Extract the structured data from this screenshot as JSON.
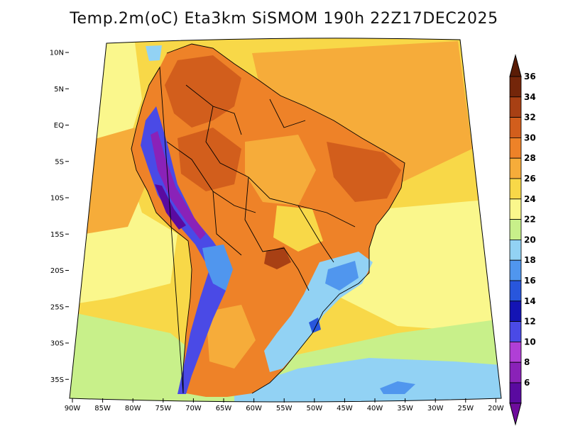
{
  "title": "Temp.2m(oC) Eta3km SiSMOM 190h 22Z17DEC2025",
  "map": {
    "variable": "2 m air temperature",
    "units": "oC",
    "model": "Eta3km SiSMOM",
    "lon_range": [
      -91,
      -19
    ],
    "lat_range": [
      -38,
      11
    ],
    "lon_ticks": [
      {
        "value": -90,
        "label": "90W"
      },
      {
        "value": -85,
        "label": "85W"
      },
      {
        "value": -80,
        "label": "80W"
      },
      {
        "value": -75,
        "label": "75W"
      },
      {
        "value": -70,
        "label": "70W"
      },
      {
        "value": -65,
        "label": "65W"
      },
      {
        "value": -60,
        "label": "60W"
      },
      {
        "value": -55,
        "label": "55W"
      },
      {
        "value": -50,
        "label": "50W"
      },
      {
        "value": -45,
        "label": "45W"
      },
      {
        "value": -40,
        "label": "40W"
      },
      {
        "value": -35,
        "label": "35W"
      },
      {
        "value": -30,
        "label": "30W"
      },
      {
        "value": -25,
        "label": "25W"
      },
      {
        "value": -20,
        "label": "20W"
      }
    ],
    "lat_ticks": [
      {
        "value": 10,
        "label": "10N"
      },
      {
        "value": 5,
        "label": "5N"
      },
      {
        "value": 0,
        "label": "EQ"
      },
      {
        "value": -5,
        "label": "5S"
      },
      {
        "value": -10,
        "label": "10S"
      },
      {
        "value": -15,
        "label": "15S"
      },
      {
        "value": -20,
        "label": "20S"
      },
      {
        "value": -25,
        "label": "25S"
      },
      {
        "value": -30,
        "label": "30S"
      },
      {
        "value": -35,
        "label": "35S"
      }
    ]
  },
  "colorbar": {
    "levels": [
      {
        "label": "6",
        "color": "#5a0aa0"
      },
      {
        "label": "8",
        "color": "#8a22b8"
      },
      {
        "label": "10",
        "color": "#b03fd6"
      },
      {
        "label": "12",
        "color": "#4a4ae6"
      },
      {
        "label": "14",
        "color": "#1414b4"
      },
      {
        "label": "16",
        "color": "#2856dc"
      },
      {
        "label": "18",
        "color": "#5096ee"
      },
      {
        "label": "20",
        "color": "#92d2f4"
      },
      {
        "label": "22",
        "color": "#c8f08a"
      },
      {
        "label": "24",
        "color": "#faf78c"
      },
      {
        "label": "26",
        "color": "#f8d848"
      },
      {
        "label": "28",
        "color": "#f6ac3a"
      },
      {
        "label": "30",
        "color": "#ee8228"
      },
      {
        "label": "32",
        "color": "#d25e1c"
      },
      {
        "label": "34",
        "color": "#a84014"
      },
      {
        "label": "36",
        "color": "#74260a"
      }
    ],
    "under_color": "#6e0c9c",
    "over_color": "#5a1c06"
  },
  "colors": {
    "sea_cool": "#c8f08a",
    "sea_warm": "#faf78c",
    "sea_hot": "#f8d848",
    "land_hot": "#ee8228",
    "land_very_hot": "#d25e1c",
    "land_mild": "#f6ac3a",
    "cold_band": "#92d2f4",
    "cold_core": "#2856dc"
  }
}
